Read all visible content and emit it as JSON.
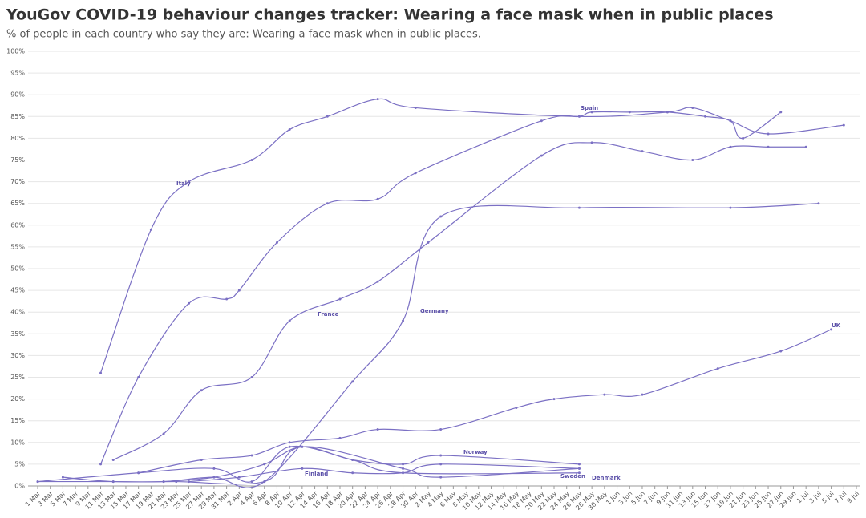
{
  "chart_data": {
    "type": "line",
    "title": "YouGov COVID-19 behaviour changes tracker: Wearing a face mask when in public places",
    "subtitle": "% of people in each country who say they are: Wearing a face mask when in public places.",
    "categories": [
      "1 Mar",
      "3 Mar",
      "5 Mar",
      "7 Mar",
      "9 Mar",
      "11 Mar",
      "13 Mar",
      "15 Mar",
      "17 Mar",
      "19 Mar",
      "21 Mar",
      "23 Mar",
      "25 Mar",
      "27 Mar",
      "29 Mar",
      "31 Mar",
      "2 Apr",
      "4 Apr",
      "6 Apr",
      "8 Apr",
      "10 Apr",
      "12 Apr",
      "14 Apr",
      "16 Apr",
      "18 Apr",
      "20 Apr",
      "22 Apr",
      "24 Apr",
      "26 Apr",
      "28 Apr",
      "30 Apr",
      "2 May",
      "4 May",
      "6 May",
      "8 May",
      "10 May",
      "12 May",
      "14 May",
      "16 May",
      "18 May",
      "20 May",
      "22 May",
      "24 May",
      "26 May",
      "28 May",
      "30 May",
      "1 Jun",
      "3 Jun",
      "5 Jun",
      "7 Jun",
      "9 Jun",
      "11 Jun",
      "13 Jun",
      "15 Jun",
      "17 Jun",
      "19 Jun",
      "21 Jun",
      "23 Jun",
      "25 Jun",
      "27 Jun",
      "29 Jun",
      "1 Jul",
      "3 Jul",
      "5 Jul",
      "7 Jul",
      "9 Jul"
    ],
    "ylim": [
      0,
      100
    ],
    "yticks": [
      {
        "value": 0,
        "label": "0%"
      },
      {
        "value": 5,
        "label": "5%"
      },
      {
        "value": 10,
        "label": "10%"
      },
      {
        "value": 15,
        "label": "15%"
      },
      {
        "value": 20,
        "label": "20%"
      },
      {
        "value": 25,
        "label": "25%"
      },
      {
        "value": 30,
        "label": "30%"
      },
      {
        "value": 35,
        "label": "35%"
      },
      {
        "value": 40,
        "label": "40%"
      },
      {
        "value": 45,
        "label": "45%"
      },
      {
        "value": 50,
        "label": "50%"
      },
      {
        "value": 55,
        "label": "55%"
      },
      {
        "value": 60,
        "label": "60%"
      },
      {
        "value": 65,
        "label": "65%"
      },
      {
        "value": 70,
        "label": "70%"
      },
      {
        "value": 75,
        "label": "75%"
      },
      {
        "value": 80,
        "label": "80%"
      },
      {
        "value": 85,
        "label": "85%"
      },
      {
        "value": 90,
        "label": "90%"
      },
      {
        "value": 95,
        "label": "95%"
      },
      {
        "value": 100,
        "label": "100%"
      }
    ],
    "grid": true,
    "series": [
      {
        "name": "Italy",
        "color": "#7b70c4",
        "x": [
          "11 Mar",
          "19 Mar",
          "25 Mar",
          "4 Apr",
          "10 Apr",
          "16 Apr",
          "24 Apr",
          "30 Apr",
          "26 May",
          "9 Jun",
          "13 Jun",
          "19 Jun",
          "25 Jun",
          "7 Jul"
        ],
        "values": [
          26,
          59,
          70,
          75,
          82,
          85,
          89,
          87,
          85,
          86,
          87,
          84,
          81,
          83
        ]
      },
      {
        "name": "Spain",
        "color": "#7b70c4",
        "x": [
          "11 Mar",
          "17 Mar",
          "25 Mar",
          "31 Mar",
          "2 Apr",
          "8 Apr",
          "16 Apr",
          "24 Apr",
          "30 Apr",
          "20 May",
          "26 May",
          "28 May",
          "3 Jun",
          "9 Jun",
          "15 Jun",
          "19 Jun",
          "21 Jun",
          "27 Jun"
        ],
        "values": [
          5,
          25,
          42,
          43,
          45,
          56,
          65,
          66,
          72,
          84,
          85,
          86,
          86,
          86,
          85,
          84,
          80,
          86
        ]
      },
      {
        "name": "France",
        "color": "#7b70c4",
        "x": [
          "13 Mar",
          "21 Mar",
          "27 Mar",
          "4 Apr",
          "10 Apr",
          "18 Apr",
          "24 Apr",
          "2 May",
          "20 May",
          "28 May",
          "5 Jun",
          "13 Jun",
          "19 Jun",
          "25 Jun",
          "1 Jul"
        ],
        "values": [
          6,
          12,
          22,
          25,
          38,
          43,
          47,
          56,
          76,
          79,
          77,
          75,
          78,
          78,
          78
        ]
      },
      {
        "name": "Germany",
        "color": "#7b70c4",
        "x": [
          "1 Mar",
          "13 Mar",
          "21 Mar",
          "29 Mar",
          "6 Apr",
          "20 Apr",
          "28 Apr",
          "4 May",
          "26 May",
          "19 Jun",
          "3 Jul"
        ],
        "values": [
          1,
          1,
          1,
          2,
          1,
          24,
          38,
          62,
          64,
          64,
          65
        ]
      },
      {
        "name": "UK",
        "color": "#7b70c4",
        "x": [
          "17 Mar",
          "27 Mar",
          "4 Apr",
          "10 Apr",
          "18 Apr",
          "24 Apr",
          "4 May",
          "16 May",
          "22 May",
          "30 May",
          "5 Jun",
          "17 Jun",
          "27 Jun",
          "5 Jul"
        ],
        "values": [
          3,
          6,
          7,
          10,
          11,
          13,
          13,
          18,
          20,
          21,
          21,
          27,
          31,
          36
        ]
      },
      {
        "name": "Norway",
        "color": "#7b70c4",
        "x": [
          "21 Mar",
          "29 Mar",
          "6 Apr",
          "12 Apr",
          "20 Apr",
          "28 Apr",
          "4 May",
          "26 May"
        ],
        "values": [
          1,
          2,
          5,
          9,
          6,
          5,
          7,
          5
        ]
      },
      {
        "name": "Finland",
        "color": "#7b70c4",
        "x": [
          "25 Mar",
          "2 Apr",
          "12 Apr",
          "20 Apr",
          "28 Apr",
          "4 May",
          "26 May"
        ],
        "values": [
          1,
          2,
          4,
          3,
          3,
          5,
          4
        ]
      },
      {
        "name": "Sweden",
        "color": "#7b70c4",
        "x": [
          "5 Mar",
          "13 Mar",
          "23 Mar",
          "6 Apr",
          "12 Apr",
          "28 Apr",
          "4 May",
          "26 May"
        ],
        "values": [
          2,
          1,
          1,
          1,
          9,
          4,
          2,
          4
        ]
      },
      {
        "name": "Denmark",
        "color": "#7b70c4",
        "x": [
          "1 Mar",
          "17 Mar",
          "29 Mar",
          "4 Apr",
          "10 Apr",
          "20 Apr",
          "28 Apr",
          "26 May"
        ],
        "values": [
          1,
          3,
          4,
          1,
          9,
          6,
          3,
          3
        ]
      }
    ]
  }
}
